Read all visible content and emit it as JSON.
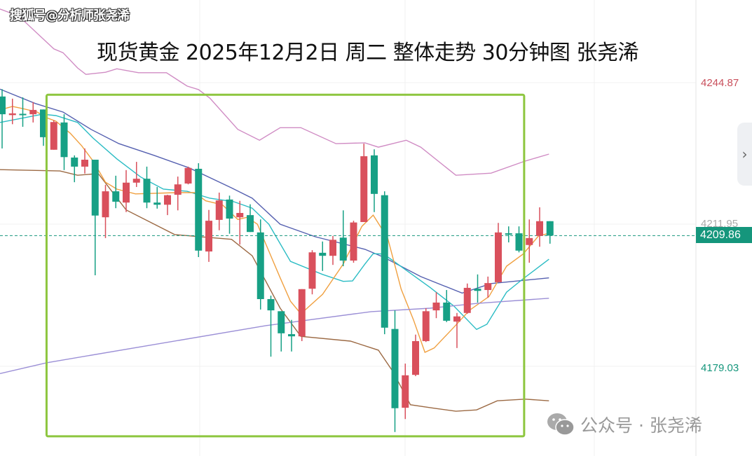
{
  "watermark": "搜狐号@分析师张尧浠",
  "title": "现货黄金 2025年12月2日 周二 整体走势 30分钟图 张尧浠",
  "footer": {
    "icon": "wechat-icon",
    "text": "公众号 · 张尧浠"
  },
  "scroll_icon": "chevron-right-icon",
  "colors": {
    "up": "#d9505c",
    "down": "#17a085",
    "box": "#8dc63f",
    "last_price": "#15967c"
  },
  "chart_data": {
    "type": "candlestick",
    "title": "现货黄金 2025年12月2日 周二 整体走势 30分钟图 张尧浠",
    "timeframe": "30分钟",
    "axis_labels": {
      "upper": "4244.87",
      "hidden": "4211.95",
      "last": "4209.86",
      "lower": "4179.03"
    },
    "last_price": 4209.86,
    "ylim": [
      4165,
      4264
    ],
    "convention": "red up, green down",
    "candles": [
      {
        "o": 4242.0,
        "h": 4243.7,
        "l": 4230.0,
        "c": 4237.9
      },
      {
        "o": 4237.7,
        "h": 4241.5,
        "l": 4235.6,
        "c": 4238.1
      },
      {
        "o": 4238.0,
        "h": 4241.8,
        "l": 4235.0,
        "c": 4237.8
      },
      {
        "o": 4237.9,
        "h": 4240.7,
        "l": 4236.0,
        "c": 4238.9
      },
      {
        "o": 4239.0,
        "h": 4239.0,
        "l": 4230.6,
        "c": 4232.6
      },
      {
        "o": 4229.7,
        "h": 4236.5,
        "l": 4229.7,
        "c": 4236.1
      },
      {
        "o": 4236.0,
        "h": 4237.9,
        "l": 4225.0,
        "c": 4228.0
      },
      {
        "o": 4227.9,
        "h": 4228.4,
        "l": 4222.2,
        "c": 4225.8
      },
      {
        "o": 4225.8,
        "h": 4230.0,
        "l": 4224.2,
        "c": 4227.4
      },
      {
        "o": 4227.4,
        "h": 4227.4,
        "l": 4200.7,
        "c": 4214.5
      },
      {
        "o": 4214.1,
        "h": 4221.6,
        "l": 4209.3,
        "c": 4220.1
      },
      {
        "o": 4220.1,
        "h": 4223.7,
        "l": 4216.2,
        "c": 4217.7
      },
      {
        "o": 4217.5,
        "h": 4225.0,
        "l": 4215.3,
        "c": 4222.1
      },
      {
        "o": 4222.1,
        "h": 4226.9,
        "l": 4221.1,
        "c": 4223.0
      },
      {
        "o": 4223.0,
        "h": 4225.8,
        "l": 4216.2,
        "c": 4217.5
      },
      {
        "o": 4217.5,
        "h": 4221.1,
        "l": 4216.1,
        "c": 4217.0
      },
      {
        "o": 4217.0,
        "h": 4219.3,
        "l": 4214.6,
        "c": 4219.2
      },
      {
        "o": 4219.3,
        "h": 4223.5,
        "l": 4215.7,
        "c": 4221.7
      },
      {
        "o": 4221.9,
        "h": 4225.8,
        "l": 4221.7,
        "c": 4225.5
      },
      {
        "o": 4225.3,
        "h": 4226.6,
        "l": 4204.9,
        "c": 4206.4
      },
      {
        "o": 4206.2,
        "h": 4215.8,
        "l": 4203.8,
        "c": 4213.3
      },
      {
        "o": 4213.5,
        "h": 4219.8,
        "l": 4211.1,
        "c": 4218.0
      },
      {
        "o": 4218.2,
        "h": 4219.1,
        "l": 4210.3,
        "c": 4213.8
      },
      {
        "o": 4214.1,
        "h": 4217.9,
        "l": 4207.8,
        "c": 4215.1
      },
      {
        "o": 4214.6,
        "h": 4217.1,
        "l": 4210.7,
        "c": 4210.7
      },
      {
        "o": 4210.6,
        "h": 4213.6,
        "l": 4192.8,
        "c": 4195.2
      },
      {
        "o": 4195.2,
        "h": 4196.0,
        "l": 4181.9,
        "c": 4192.6
      },
      {
        "o": 4192.4,
        "h": 4192.4,
        "l": 4183.1,
        "c": 4187.3
      },
      {
        "o": 4187.1,
        "h": 4190.4,
        "l": 4183.1,
        "c": 4186.6
      },
      {
        "o": 4186.6,
        "h": 4197.5,
        "l": 4185.5,
        "c": 4197.5
      },
      {
        "o": 4197.6,
        "h": 4206.5,
        "l": 4196.3,
        "c": 4206.0
      },
      {
        "o": 4205.9,
        "h": 4208.5,
        "l": 4201.7,
        "c": 4205.2
      },
      {
        "o": 4205.2,
        "h": 4209.8,
        "l": 4203.1,
        "c": 4208.9
      },
      {
        "o": 4209.4,
        "h": 4215.7,
        "l": 4202.8,
        "c": 4204.1
      },
      {
        "o": 4204.1,
        "h": 4213.3,
        "l": 4203.6,
        "c": 4212.9
      },
      {
        "o": 4213.0,
        "h": 4231.1,
        "l": 4213.0,
        "c": 4228.2
      },
      {
        "o": 4228.4,
        "h": 4229.8,
        "l": 4215.3,
        "c": 4219.5
      },
      {
        "o": 4219.2,
        "h": 4220.1,
        "l": 4187.1,
        "c": 4188.6
      },
      {
        "o": 4188.3,
        "h": 4192.6,
        "l": 4164.5,
        "c": 4170.0
      },
      {
        "o": 4170.1,
        "h": 4180.3,
        "l": 4167.5,
        "c": 4177.6
      },
      {
        "o": 4177.7,
        "h": 4187.0,
        "l": 4177.4,
        "c": 4185.5
      },
      {
        "o": 4185.5,
        "h": 4193.1,
        "l": 4185.3,
        "c": 4192.4
      },
      {
        "o": 4192.6,
        "h": 4196.8,
        "l": 4190.8,
        "c": 4194.4
      },
      {
        "o": 4194.4,
        "h": 4197.3,
        "l": 4189.9,
        "c": 4190.2
      },
      {
        "o": 4190.0,
        "h": 4192.0,
        "l": 4183.9,
        "c": 4191.2
      },
      {
        "o": 4192.0,
        "h": 4198.8,
        "l": 4191.8,
        "c": 4197.8
      },
      {
        "o": 4197.6,
        "h": 4200.9,
        "l": 4194.4,
        "c": 4197.1
      },
      {
        "o": 4197.3,
        "h": 4200.4,
        "l": 4195.5,
        "c": 4198.9
      },
      {
        "o": 4199.1,
        "h": 4212.8,
        "l": 4199.1,
        "c": 4210.6
      },
      {
        "o": 4210.4,
        "h": 4212.0,
        "l": 4208.3,
        "c": 4210.3
      },
      {
        "o": 4210.4,
        "h": 4212.0,
        "l": 4206.0,
        "c": 4206.4
      },
      {
        "o": 4207.7,
        "h": 4213.6,
        "l": 4203.6,
        "c": 4209.3
      },
      {
        "o": 4209.8,
        "h": 4216.4,
        "l": 4207.3,
        "c": 4213.2
      },
      {
        "o": 4213.2,
        "h": 4213.2,
        "l": 4208.0,
        "c": 4209.86
      }
    ],
    "lines": [
      {
        "role": "bollinger-upper",
        "color": "#d08cc4",
        "points": [
          [
            -0.2,
            4262.2
          ],
          [
            1.6,
            4260.6
          ],
          [
            5.0,
            4253.0
          ],
          [
            5.9,
            4252.1
          ],
          [
            7.3,
            4248.6
          ],
          [
            8.1,
            4247.1
          ],
          [
            10.0,
            4247.6
          ],
          [
            11.1,
            4248.4
          ],
          [
            13.2,
            4247.5
          ],
          [
            15.9,
            4247.5
          ],
          [
            17.9,
            4244.4
          ],
          [
            19.0,
            4243.6
          ],
          [
            20.1,
            4241.6
          ],
          [
            22.8,
            4234.4
          ],
          [
            24.9,
            4231.9
          ],
          [
            26.9,
            4234.8
          ],
          [
            28.9,
            4234.8
          ],
          [
            32.3,
            4231.1
          ],
          [
            35.1,
            4231.3
          ],
          [
            36.4,
            4230.3
          ],
          [
            39.1,
            4231.9
          ],
          [
            40.5,
            4230.3
          ],
          [
            43.9,
            4223.8
          ],
          [
            47.3,
            4224.3
          ],
          [
            50.6,
            4227.1
          ],
          [
            52.9,
            4228.7
          ]
        ]
      },
      {
        "role": "bollinger-lower",
        "color": "#9c6a44",
        "points": [
          [
            -0.2,
            4225.1
          ],
          [
            5.6,
            4224.8
          ],
          [
            7.3,
            4223.8
          ],
          [
            9.3,
            4224.2
          ],
          [
            12.0,
            4215.8
          ],
          [
            16.7,
            4210.1
          ],
          [
            22.2,
            4209.0
          ],
          [
            24.2,
            4205.2
          ],
          [
            26.9,
            4193.1
          ],
          [
            28.9,
            4186.6
          ],
          [
            33.7,
            4185.5
          ],
          [
            36.4,
            4183.4
          ],
          [
            37.8,
            4178.5
          ],
          [
            39.5,
            4170.8
          ],
          [
            41.8,
            4170.0
          ],
          [
            43.9,
            4169.3
          ],
          [
            45.9,
            4169.6
          ],
          [
            47.9,
            4171.7
          ],
          [
            50.6,
            4172.1
          ],
          [
            52.9,
            4171.7
          ]
        ]
      },
      {
        "role": "ma-blue",
        "color": "#5560b0",
        "points": [
          [
            -0.2,
            4243.7
          ],
          [
            3.2,
            4240.4
          ],
          [
            5.9,
            4238.4
          ],
          [
            8.6,
            4234.4
          ],
          [
            11.3,
            4231.1
          ],
          [
            14.7,
            4228.4
          ],
          [
            18.1,
            4225.5
          ],
          [
            22.2,
            4220.9
          ],
          [
            24.2,
            4218.5
          ],
          [
            26.9,
            4212.5
          ],
          [
            30.3,
            4209.6
          ],
          [
            35.1,
            4206.7
          ],
          [
            36.9,
            4204.9
          ],
          [
            40.5,
            4200.4
          ],
          [
            44.5,
            4196.6
          ],
          [
            47.3,
            4198.8
          ],
          [
            52.9,
            4200.1
          ]
        ]
      },
      {
        "role": "ma-cyan",
        "color": "#2bbcc4",
        "points": [
          [
            -0.2,
            4236.0
          ],
          [
            3.9,
            4237.9
          ],
          [
            5.2,
            4237.6
          ],
          [
            7.3,
            4236.0
          ],
          [
            8.8,
            4232.4
          ],
          [
            11.1,
            4227.6
          ],
          [
            13.4,
            4223.4
          ],
          [
            15.6,
            4220.6
          ],
          [
            17.9,
            4220.1
          ],
          [
            20.1,
            4218.5
          ],
          [
            22.4,
            4217.7
          ],
          [
            24.2,
            4216.2
          ],
          [
            25.8,
            4212.5
          ],
          [
            27.9,
            4203.9
          ],
          [
            31.0,
            4200.9
          ],
          [
            33.0,
            4199.3
          ],
          [
            33.9,
            4199.4
          ],
          [
            35.1,
            4203.3
          ],
          [
            35.9,
            4205.7
          ],
          [
            36.9,
            4205.6
          ],
          [
            37.8,
            4204.1
          ],
          [
            41.4,
            4197.9
          ],
          [
            43.7,
            4193.6
          ],
          [
            45.9,
            4188.2
          ],
          [
            46.9,
            4189.4
          ],
          [
            48.8,
            4196.8
          ],
          [
            50.4,
            4199.9
          ],
          [
            52.9,
            4204.4
          ]
        ]
      },
      {
        "role": "ma-orange",
        "color": "#f0a040",
        "points": [
          [
            -0.2,
            4238.9
          ],
          [
            1.0,
            4239.7
          ],
          [
            2.0,
            4239.2
          ],
          [
            3.4,
            4238.4
          ],
          [
            4.3,
            4237.1
          ],
          [
            5.2,
            4236.3
          ],
          [
            6.6,
            4233.5
          ],
          [
            7.7,
            4230.6
          ],
          [
            8.8,
            4227.1
          ],
          [
            10.0,
            4222.2
          ],
          [
            11.1,
            4220.6
          ],
          [
            12.9,
            4219.5
          ],
          [
            16.9,
            4219.8
          ],
          [
            18.6,
            4219.8
          ],
          [
            19.7,
            4217.9
          ],
          [
            21.3,
            4217.0
          ],
          [
            22.8,
            4213.6
          ],
          [
            23.7,
            4214.1
          ],
          [
            24.7,
            4212.5
          ],
          [
            26.9,
            4200.1
          ],
          [
            27.9,
            4194.7
          ],
          [
            28.9,
            4191.8
          ],
          [
            31.0,
            4196.3
          ],
          [
            33.0,
            4203.3
          ],
          [
            34.8,
            4212.0
          ],
          [
            35.9,
            4214.6
          ],
          [
            37.3,
            4209.3
          ],
          [
            38.6,
            4197.5
          ],
          [
            39.8,
            4190.4
          ],
          [
            40.9,
            4182.9
          ],
          [
            41.8,
            4183.9
          ],
          [
            43.7,
            4188.7
          ],
          [
            45.2,
            4192.6
          ],
          [
            47.1,
            4195.8
          ],
          [
            48.8,
            4202.8
          ],
          [
            50.4,
            4205.6
          ],
          [
            51.9,
            4209.8
          ],
          [
            52.9,
            4210.4
          ]
        ]
      },
      {
        "role": "ma-lavender",
        "color": "#9b8fd6",
        "points": [
          [
            -0.2,
            4178.0
          ],
          [
            4.3,
            4180.5
          ],
          [
            25.6,
            4189.1
          ],
          [
            35.7,
            4192.3
          ],
          [
            41.4,
            4193.1
          ],
          [
            45.9,
            4194.2
          ],
          [
            52.9,
            4195.4
          ]
        ]
      }
    ],
    "annotation_box": {
      "from_index": 4.3,
      "to_index": 50.5,
      "top_price": 4242.4,
      "bottom_price": 4163.5,
      "color": "#8dc63f"
    }
  }
}
